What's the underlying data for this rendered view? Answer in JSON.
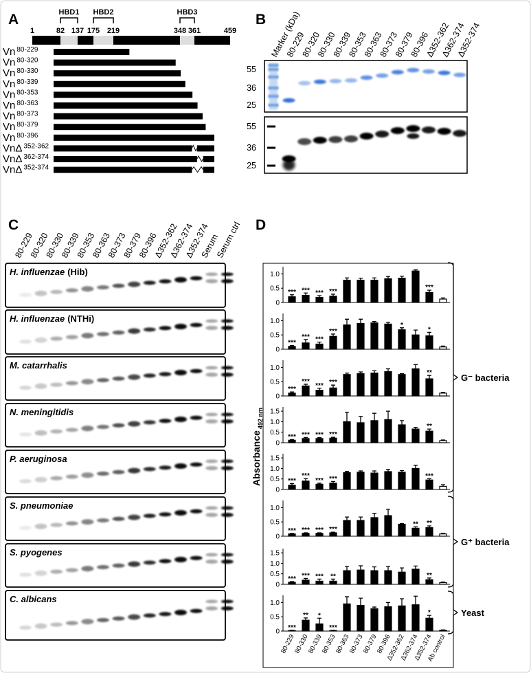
{
  "panel_a": {
    "letter": "A",
    "scale_ticks": [
      1,
      82,
      137,
      175,
      219,
      348,
      361,
      459
    ],
    "hbds": [
      {
        "label": "HBD1",
        "range": [
          82,
          137
        ]
      },
      {
        "label": "HBD2",
        "range": [
          175,
          219
        ]
      },
      {
        "label": "HBD3",
        "range": [
          348,
          361
        ]
      }
    ],
    "constructs": [
      {
        "name": "Vn",
        "sup": "80-229",
        "range": [
          80,
          229
        ]
      },
      {
        "name": "Vn",
        "sup": "80-320",
        "range": [
          80,
          320
        ]
      },
      {
        "name": "Vn",
        "sup": "80-330",
        "range": [
          80,
          330
        ]
      },
      {
        "name": "Vn",
        "sup": "80-339",
        "range": [
          80,
          339
        ]
      },
      {
        "name": "Vn",
        "sup": "80-353",
        "range": [
          80,
          353
        ]
      },
      {
        "name": "Vn",
        "sup": "80-363",
        "range": [
          80,
          363
        ]
      },
      {
        "name": "Vn",
        "sup": "80-373",
        "range": [
          80,
          373
        ]
      },
      {
        "name": "Vn",
        "sup": "80-379",
        "range": [
          80,
          379
        ]
      },
      {
        "name": "Vn",
        "sup": "80-396",
        "range": [
          80,
          396
        ]
      },
      {
        "name": "VnΔ",
        "sup": "352-362",
        "range": [
          80,
          396
        ],
        "deletion": [
          352,
          362
        ]
      },
      {
        "name": "VnΔ",
        "sup": "362-374",
        "range": [
          80,
          396
        ],
        "deletion": [
          362,
          374
        ]
      },
      {
        "name": "VnΔ",
        "sup": "352-374",
        "range": [
          80,
          396
        ],
        "deletion": [
          352,
          374
        ]
      }
    ]
  },
  "panel_b": {
    "letter": "B",
    "lanes": [
      "Marker (kDa)",
      "80-229",
      "80-320",
      "80-330",
      "80-339",
      "80-353",
      "80-363",
      "80-373",
      "80-379",
      "80-396",
      "Δ352-362",
      "Δ362-374",
      "Δ352-374"
    ],
    "mw_top": [
      55,
      36,
      25
    ],
    "mw_bottom": [
      55,
      36,
      25
    ]
  },
  "panel_c": {
    "letter": "C",
    "lanes": [
      "80-229",
      "80-320",
      "80-330",
      "80-339",
      "80-353",
      "80-363",
      "80-373",
      "80-379",
      "80-396",
      "Δ352-362",
      "Δ362-374",
      "Δ352-374",
      "Serum",
      "Serum ctrl"
    ],
    "blots": [
      {
        "species": "H. influenzae",
        "strain": "(Hib)"
      },
      {
        "species": "H. influenzae",
        "strain": "(NTHi)"
      },
      {
        "species": "M. catarrhalis"
      },
      {
        "species": "N. meningitidis"
      },
      {
        "species": "P. aeruginosa"
      },
      {
        "species": "S. pneumoniae"
      },
      {
        "species": "S. pyogenes"
      },
      {
        "species": "C. albicans"
      }
    ]
  },
  "panel_d": {
    "letter": "D",
    "ylabel": "Absorbance",
    "ylabel_sub": "492 nm",
    "categories": [
      "80-229",
      "80-330",
      "80-339",
      "80-353",
      "80-363",
      "80-373",
      "80-379",
      "80-396",
      "Δ352-362",
      "Δ362-374",
      "Δ352-374",
      "Ab control"
    ],
    "groups": [
      "G⁻ bacteria",
      "G⁺ bacteria",
      "Yeast"
    ],
    "panels": [
      {
        "ylim": [
          0,
          1.25
        ],
        "yticks": [
          0,
          0.5,
          {
            "value": 1,
            "label": "1.0"
          }
        ],
        "values": [
          0.2,
          0.25,
          0.18,
          0.22,
          0.78,
          0.78,
          0.78,
          0.83,
          0.85,
          1.1,
          0.35,
          0.12
        ],
        "errors": [
          0.07,
          0.08,
          0.06,
          0.07,
          0.08,
          0.07,
          0.08,
          0.08,
          0.07,
          0.04,
          0.08,
          0.04
        ],
        "stars": [
          "***",
          "***",
          "***",
          "***",
          null,
          null,
          null,
          null,
          null,
          null,
          "***",
          null
        ]
      },
      {
        "ylim": [
          0,
          1.25
        ],
        "yticks": [
          0,
          0.5,
          {
            "value": 1,
            "label": "1.0"
          }
        ],
        "values": [
          0.1,
          0.22,
          0.18,
          0.45,
          0.85,
          0.9,
          0.92,
          0.88,
          0.68,
          0.5,
          0.47,
          0.08
        ],
        "errors": [
          0.03,
          0.12,
          0.07,
          0.08,
          0.2,
          0.15,
          0.05,
          0.06,
          0.07,
          0.17,
          0.12,
          0.03
        ],
        "stars": [
          "***",
          "***",
          "***",
          "***",
          null,
          null,
          null,
          null,
          "*",
          null,
          "*",
          null
        ]
      },
      {
        "ylim": [
          0,
          1.25
        ],
        "yticks": [
          0,
          0.5,
          {
            "value": 1,
            "label": "1.0"
          }
        ],
        "values": [
          0.1,
          0.35,
          0.2,
          0.28,
          0.75,
          0.78,
          0.8,
          0.85,
          0.75,
          0.95,
          0.6,
          0.1
        ],
        "errors": [
          0.04,
          0.06,
          0.07,
          0.1,
          0.05,
          0.06,
          0.08,
          0.1,
          0.03,
          0.15,
          0.12,
          0.03
        ],
        "stars": [
          "***",
          "***",
          "***",
          "***",
          null,
          null,
          null,
          null,
          null,
          null,
          "**",
          null
        ]
      },
      {
        "ylim": [
          0,
          1.7
        ],
        "yticks": [
          0,
          0.5,
          {
            "value": 1,
            "label": "1.0"
          },
          1.5
        ],
        "values": [
          0.12,
          0.2,
          0.2,
          0.22,
          1.0,
          0.95,
          1.05,
          1.1,
          0.85,
          0.65,
          0.55,
          0.1
        ],
        "errors": [
          0.03,
          0.05,
          0.04,
          0.04,
          0.45,
          0.3,
          0.35,
          0.4,
          0.2,
          0.08,
          0.1,
          0.03
        ],
        "stars": [
          "***",
          "***",
          "***",
          "***",
          null,
          null,
          null,
          null,
          null,
          null,
          "**",
          null
        ]
      },
      {
        "ylim": [
          0,
          1.7
        ],
        "yticks": [
          0,
          0.5,
          {
            "value": 1,
            "label": "1.0"
          },
          1.5
        ],
        "values": [
          0.2,
          0.4,
          0.25,
          0.3,
          0.8,
          0.82,
          0.78,
          0.85,
          0.82,
          1.0,
          0.45,
          0.15
        ],
        "errors": [
          0.08,
          0.12,
          0.05,
          0.08,
          0.06,
          0.06,
          0.1,
          0.1,
          0.08,
          0.15,
          0.06,
          0.08
        ],
        "stars": [
          "***",
          "***",
          "***",
          "***",
          null,
          null,
          null,
          null,
          null,
          null,
          "***",
          null
        ]
      },
      {
        "ylim": [
          0,
          1.25
        ],
        "yticks": [
          0,
          0.5,
          {
            "value": 1,
            "label": "1.0"
          }
        ],
        "values": [
          0.08,
          0.1,
          0.1,
          0.12,
          0.55,
          0.55,
          0.65,
          0.72,
          0.42,
          0.28,
          0.3,
          0.08
        ],
        "errors": [
          0.02,
          0.02,
          0.02,
          0.02,
          0.12,
          0.12,
          0.15,
          0.22,
          0.02,
          0.05,
          0.06,
          0.02
        ],
        "stars": [
          "***",
          "***",
          "***",
          "***",
          null,
          null,
          null,
          null,
          null,
          "**",
          "**",
          null
        ]
      },
      {
        "ylim": [
          0,
          1.7
        ],
        "yticks": [
          0,
          0.5,
          {
            "value": 1,
            "label": "1.0"
          },
          1.5
        ],
        "values": [
          0.1,
          0.2,
          0.15,
          0.15,
          0.65,
          0.68,
          0.65,
          0.65,
          0.58,
          0.72,
          0.22,
          0.08
        ],
        "errors": [
          0.03,
          0.08,
          0.1,
          0.1,
          0.2,
          0.2,
          0.18,
          0.2,
          0.2,
          0.15,
          0.08,
          0.03
        ],
        "stars": [
          "***",
          "***",
          "***",
          "**",
          null,
          null,
          null,
          null,
          null,
          null,
          "**",
          null
        ]
      },
      {
        "ylim": [
          0,
          1.25
        ],
        "yticks": [
          0,
          0.5,
          {
            "value": 1,
            "label": "1.0"
          }
        ],
        "values": [
          0.02,
          0.38,
          0.25,
          0.02,
          0.95,
          0.9,
          0.78,
          0.85,
          0.88,
          0.92,
          0.45,
          0.03
        ],
        "errors": [
          0.01,
          0.08,
          0.2,
          0.01,
          0.25,
          0.25,
          0.06,
          0.15,
          0.25,
          0.3,
          0.1,
          0.01
        ],
        "stars": [
          "***",
          "**",
          "*",
          "***",
          null,
          null,
          null,
          null,
          null,
          null,
          "*",
          null
        ]
      }
    ]
  }
}
